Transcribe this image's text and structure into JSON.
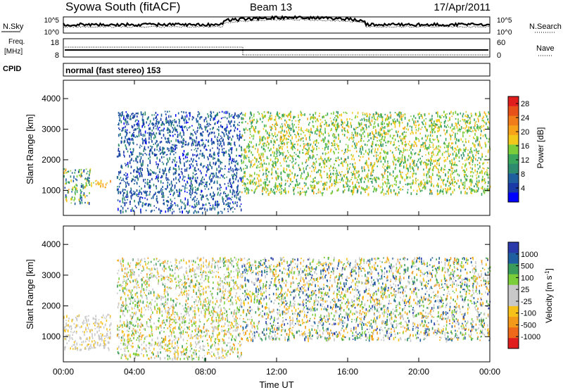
{
  "header": {
    "station": "Syowa South (fitACF)",
    "beam": "Beam 13",
    "date": "17/Apr/2011"
  },
  "noise_panel": {
    "left_label": "N.Sky",
    "right_label": "N.Search",
    "left_ticks": [
      "10^5",
      "10^0"
    ],
    "right_ticks": [
      "10^5",
      "10^0"
    ]
  },
  "freq_panel": {
    "left_label_1": "Freq.",
    "left_label_2": "[MHz]",
    "right_label": "Nave",
    "left_ticks": [
      "18",
      "8"
    ],
    "right_ticks": [
      "60",
      "0"
    ],
    "cpid_label": "CPID",
    "cpid_text": "normal (fast stereo) 153"
  },
  "colors": {
    "power_scale": [
      "#0000ff",
      "#1a3aa8",
      "#1f5fa0",
      "#2e8b6f",
      "#3aa75c",
      "#7ccd3a",
      "#f2c81a",
      "#f7a21b",
      "#f07d1a",
      "#e8501a",
      "#e01e1e"
    ],
    "velocity_scale": [
      "#e01e1e",
      "#ee6a1a",
      "#f39a1b",
      "#f6c21a",
      "#c8c8c8",
      "#c8c8c8",
      "#7ccd3a",
      "#3a9b5a",
      "#1f5fa0",
      "#2a3aa8"
    ],
    "noise_solid": "#000000",
    "noise_dotted": "#000000"
  },
  "chart_data": [
    {
      "type": "heatmap",
      "name": "power",
      "xlabel": "",
      "ylabel": "Slant Range [km]",
      "x_ticks": [
        "00:00",
        "04:00",
        "08:00",
        "12:00",
        "16:00",
        "20:00",
        "00:00"
      ],
      "y_ticks": [
        "1000",
        "2000",
        "3000",
        "4000"
      ],
      "xlim_hours": [
        0,
        24
      ],
      "ylim_km": [
        180,
        4600
      ],
      "colorbar": {
        "label": "Power [dB]",
        "ticks": [
          "4",
          "8",
          "12",
          "16",
          "20",
          "24",
          "28"
        ],
        "range": [
          0,
          30
        ]
      },
      "scatter_regions": [
        {
          "t": [
            0.0,
            1.5
          ],
          "r": [
            600,
            1750
          ],
          "value": [
            4,
            20
          ]
        },
        {
          "t": [
            1.5,
            2.7
          ],
          "r": [
            1100,
            1350
          ],
          "value": [
            16,
            22
          ]
        },
        {
          "t": [
            3.0,
            10.0
          ],
          "r": [
            300,
            3600
          ],
          "value": [
            2,
            10
          ]
        },
        {
          "t": [
            5.0,
            6.2
          ],
          "r": [
            3200,
            3300
          ],
          "value": [
            4,
            8
          ]
        },
        {
          "t": [
            10.0,
            24.0
          ],
          "r": [
            900,
            3600
          ],
          "value": [
            10,
            20
          ]
        }
      ]
    },
    {
      "type": "heatmap",
      "name": "velocity",
      "xlabel": "Time UT",
      "ylabel": "Slant Range [km]",
      "x_ticks": [
        "00:00",
        "04:00",
        "08:00",
        "12:00",
        "16:00",
        "20:00",
        "00:00"
      ],
      "y_ticks": [
        "1000",
        "2000",
        "3000",
        "4000"
      ],
      "xlim_hours": [
        0,
        24
      ],
      "ylim_km": [
        180,
        4600
      ],
      "colorbar": {
        "label": "Velocity [m s^-1]",
        "ticks": [
          "1000",
          "500",
          "100",
          "25",
          "-25",
          "-100",
          "-500",
          "-1000"
        ],
        "range": [
          -1000,
          1000
        ]
      },
      "scatter_regions": [
        {
          "t": [
            0.0,
            2.7
          ],
          "r": [
            600,
            1750
          ],
          "value": [
            -300,
            150
          ]
        },
        {
          "t": [
            3.0,
            10.0
          ],
          "r": [
            300,
            3600
          ],
          "value": [
            -500,
            500
          ]
        },
        {
          "t": [
            10.0,
            24.0
          ],
          "r": [
            900,
            3600
          ],
          "value": [
            -600,
            900
          ]
        }
      ]
    }
  ]
}
